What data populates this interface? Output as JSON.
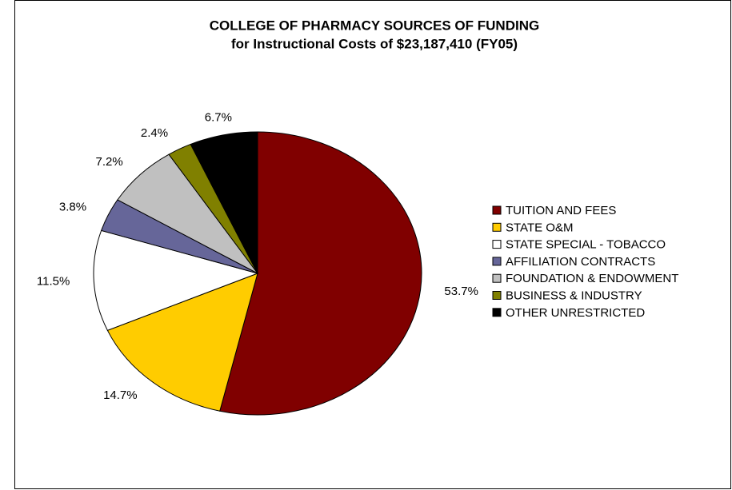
{
  "chart_data": {
    "type": "pie",
    "title": "COLLEGE OF PHARMACY SOURCES OF FUNDING",
    "subtitle": "for Instructional Costs of $23,187,410 (FY05)",
    "categories": [
      "TUITION AND FEES",
      "STATE O&M",
      "STATE SPECIAL - TOBACCO",
      "AFFILIATION CONTRACTS",
      "FOUNDATION & ENDOWMENT",
      "BUSINESS & INDUSTRY",
      "OTHER UNRESTRICTED"
    ],
    "values": [
      53.7,
      14.7,
      11.5,
      3.8,
      7.2,
      2.4,
      6.7
    ],
    "value_labels": [
      "53.7%",
      "14.7%",
      "11.5%",
      "3.8%",
      "7.2%",
      "2.4%",
      "6.7%"
    ],
    "colors": [
      "#800000",
      "#ffcc00",
      "#ffffff",
      "#666699",
      "#c0c0c0",
      "#808000",
      "#000000"
    ],
    "legend": "right"
  }
}
